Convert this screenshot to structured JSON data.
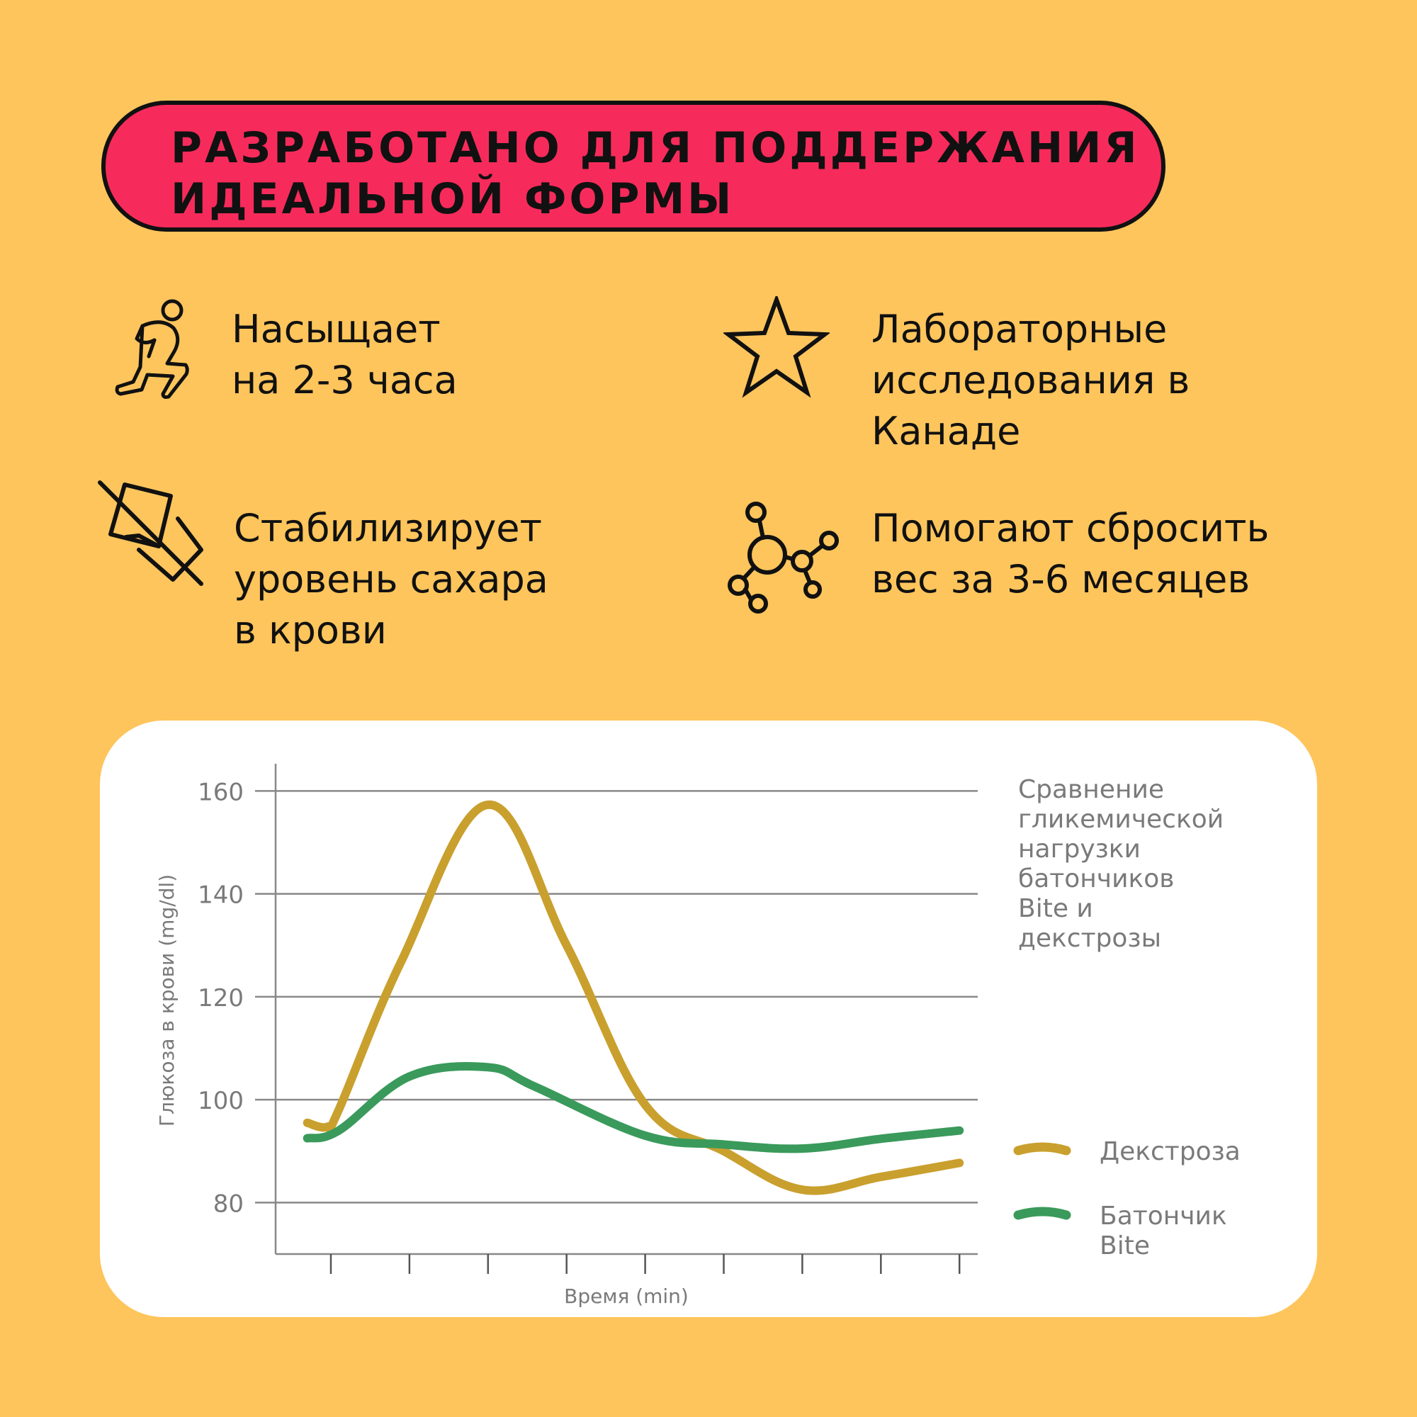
{
  "banner": {
    "line1": "РАЗРАБОТАНО ДЛЯ ПОДДЕРЖАНИЯ",
    "line2": "ИДЕАЛЬНОЙ ФОРМЫ"
  },
  "features": [
    {
      "icon": "kneeling-person-icon",
      "lines": [
        "Насыщает",
        "на 2-3 часа"
      ]
    },
    {
      "icon": "star-icon",
      "lines": [
        "Лабораторные",
        "исследования в",
        "Канаде"
      ]
    },
    {
      "icon": "no-candy-icon",
      "lines": [
        "Стабилизирует",
        "уровень сахара",
        "в крови"
      ]
    },
    {
      "icon": "molecule-icon",
      "lines": [
        "Помогают сбросить",
        "вес за 3-6 месяцев"
      ]
    }
  ],
  "colors": {
    "background": "#FEC55C",
    "banner": "#F72B5B",
    "dextrose": "#C9A02E",
    "bite": "#3A9A5B",
    "text_gray": "#7A7A7A"
  },
  "chart_data": {
    "type": "line",
    "title_lines": [
      "Сравнение",
      "гликемической",
      "нагрузки",
      "батончиков",
      "Bite и",
      "декстрозы"
    ],
    "xlabel": "Время (min)",
    "ylabel": "Глюкоза в крови (mg/dl)",
    "ylim": [
      70,
      165
    ],
    "yticks": [
      80,
      100,
      120,
      140,
      160
    ],
    "x_tick_count": 9,
    "xlim": [
      -0.7,
      8.3
    ],
    "grid": true,
    "legend_position": "right",
    "series": [
      {
        "name": "Декстроза",
        "color": "#C9A02E",
        "points": [
          [
            -0.3,
            95.5
          ],
          [
            -0.05,
            94.7
          ],
          [
            0.1,
            98
          ],
          [
            0.9,
            127
          ],
          [
            2,
            157.3
          ],
          [
            3,
            130
          ],
          [
            4,
            99
          ],
          [
            5,
            90
          ],
          [
            6,
            82.5
          ],
          [
            7,
            85
          ],
          [
            8,
            87.7
          ]
        ]
      },
      {
        "name": "Батончик\nBite",
        "legend_lines": [
          "Батончик",
          "Bite"
        ],
        "color": "#3A9A5B",
        "points": [
          [
            -0.3,
            92.5
          ],
          [
            0.1,
            94
          ],
          [
            1,
            104.5
          ],
          [
            2,
            106.3
          ],
          [
            2.6,
            102.5
          ],
          [
            4,
            93
          ],
          [
            5,
            91.3
          ],
          [
            6,
            90.5
          ],
          [
            7,
            92.4
          ],
          [
            8,
            94
          ]
        ]
      }
    ]
  }
}
